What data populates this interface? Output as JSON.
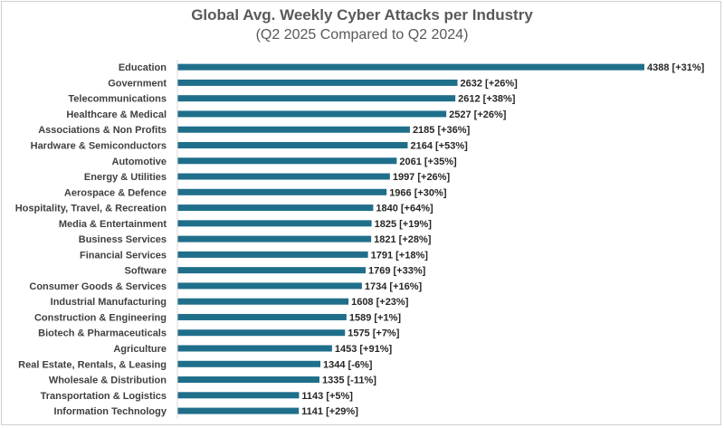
{
  "chart_data": {
    "type": "bar",
    "orientation": "horizontal",
    "title": "Global Avg. Weekly Cyber Attacks per Industry",
    "subtitle": "(Q2 2025 Compared to Q2 2024)",
    "xlabel": "",
    "ylabel": "",
    "xlim": [
      0,
      4388
    ],
    "grid": false,
    "bar_color": "#1f6f8b",
    "categories": [
      "Education",
      "Government",
      "Telecommunications",
      "Healthcare & Medical",
      "Associations & Non Profits",
      "Hardware & Semiconductors",
      "Automotive",
      "Energy & Utilities",
      "Aerospace & Defence",
      "Hospitality, Travel, & Recreation",
      "Media & Entertainment",
      "Business Services",
      "Financial Services",
      "Software",
      "Consumer Goods & Services",
      "Industrial Manufacturing",
      "Construction & Engineering",
      "Biotech & Pharmaceuticals",
      "Agriculture",
      "Real Estate, Rentals, & Leasing",
      "Wholesale & Distribution",
      "Transportation & Logistics",
      "Information Technology"
    ],
    "values": [
      4388,
      2632,
      2612,
      2527,
      2185,
      2164,
      2061,
      1997,
      1966,
      1840,
      1825,
      1821,
      1791,
      1769,
      1734,
      1608,
      1589,
      1575,
      1453,
      1344,
      1335,
      1143,
      1141
    ],
    "data_labels": [
      "4388 [+31%]",
      "2632 [+26%]",
      "2612 [+38%]",
      "2527 [+26%]",
      "2185 [+36%]",
      "2164 [+53%]",
      "2061 [+35%]",
      "1997 [+26%]",
      "1966 [+30%]",
      "1840 [+64%]",
      "1825 [+19%]",
      "1821 [+28%]",
      "1791 [+18%]",
      "1769 [+33%]",
      "1734 [+16%]",
      "1608 [+23%]",
      "1589 [+1%]",
      "1575 [+7%]",
      "1453 [+91%]",
      "1344 [-6%]",
      "1335 [-11%]",
      "1143 [+5%]",
      "1141 [+29%]"
    ]
  }
}
